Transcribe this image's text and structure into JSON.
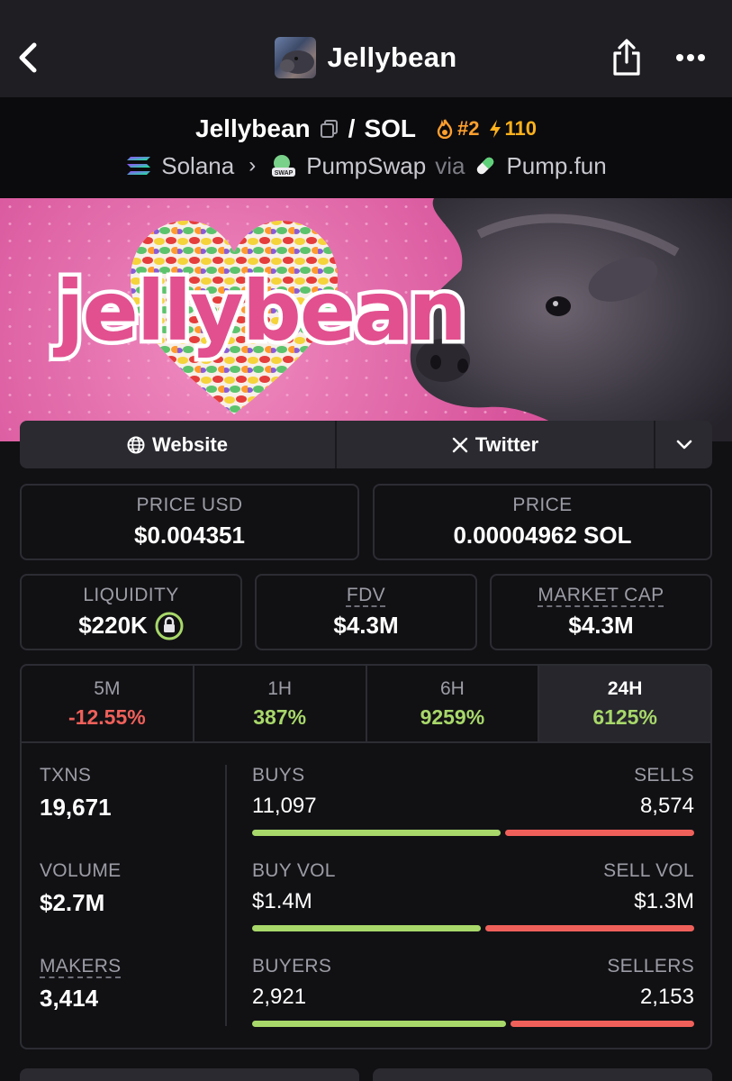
{
  "topbar": {
    "title": "Jellybean"
  },
  "pair": {
    "base": "Jellybean",
    "separator": "/",
    "quote": "SOL",
    "rank": "#2",
    "boosts": "110",
    "chain": "Solana",
    "dex": "PumpSwap",
    "via": "via",
    "launchpad": "Pump.fun"
  },
  "banner": {
    "word": "jellybean"
  },
  "links": {
    "website": "Website",
    "twitter": "Twitter"
  },
  "price": {
    "usd_label": "PRICE USD",
    "usd_value": "$0.004351",
    "native_label": "PRICE",
    "native_value": "0.00004962 SOL"
  },
  "metrics": {
    "liquidity_label": "LIQUIDITY",
    "liquidity_value": "$220K",
    "fdv_label": "FDV",
    "fdv_value": "$4.3M",
    "mcap_label": "MARKET CAP",
    "mcap_value": "$4.3M"
  },
  "timeframes": [
    {
      "label": "5M",
      "change": "-12.55%"
    },
    {
      "label": "1H",
      "change": "387%"
    },
    {
      "label": "6H",
      "change": "9259%"
    },
    {
      "label": "24H",
      "change": "6125%"
    }
  ],
  "stats": {
    "txns_label": "TXNS",
    "txns_value": "19,671",
    "volume_label": "VOLUME",
    "volume_value": "$2.7M",
    "makers_label": "MAKERS",
    "makers_value": "3,414",
    "buys_label": "BUYS",
    "buys_value": "11,097",
    "sells_label": "SELLS",
    "sells_value": "8,574",
    "buy_vol_label": "BUY VOL",
    "buy_vol_value": "$1.4M",
    "sell_vol_label": "SELL VOL",
    "sell_vol_value": "$1.3M",
    "buyers_label": "BUYERS",
    "buyers_value": "2,921",
    "sellers_label": "SELLERS",
    "sellers_value": "2,153"
  },
  "colors": {
    "positive": "#a8d86a",
    "negative": "#f0605a",
    "brand_pink": "#e2508f"
  }
}
